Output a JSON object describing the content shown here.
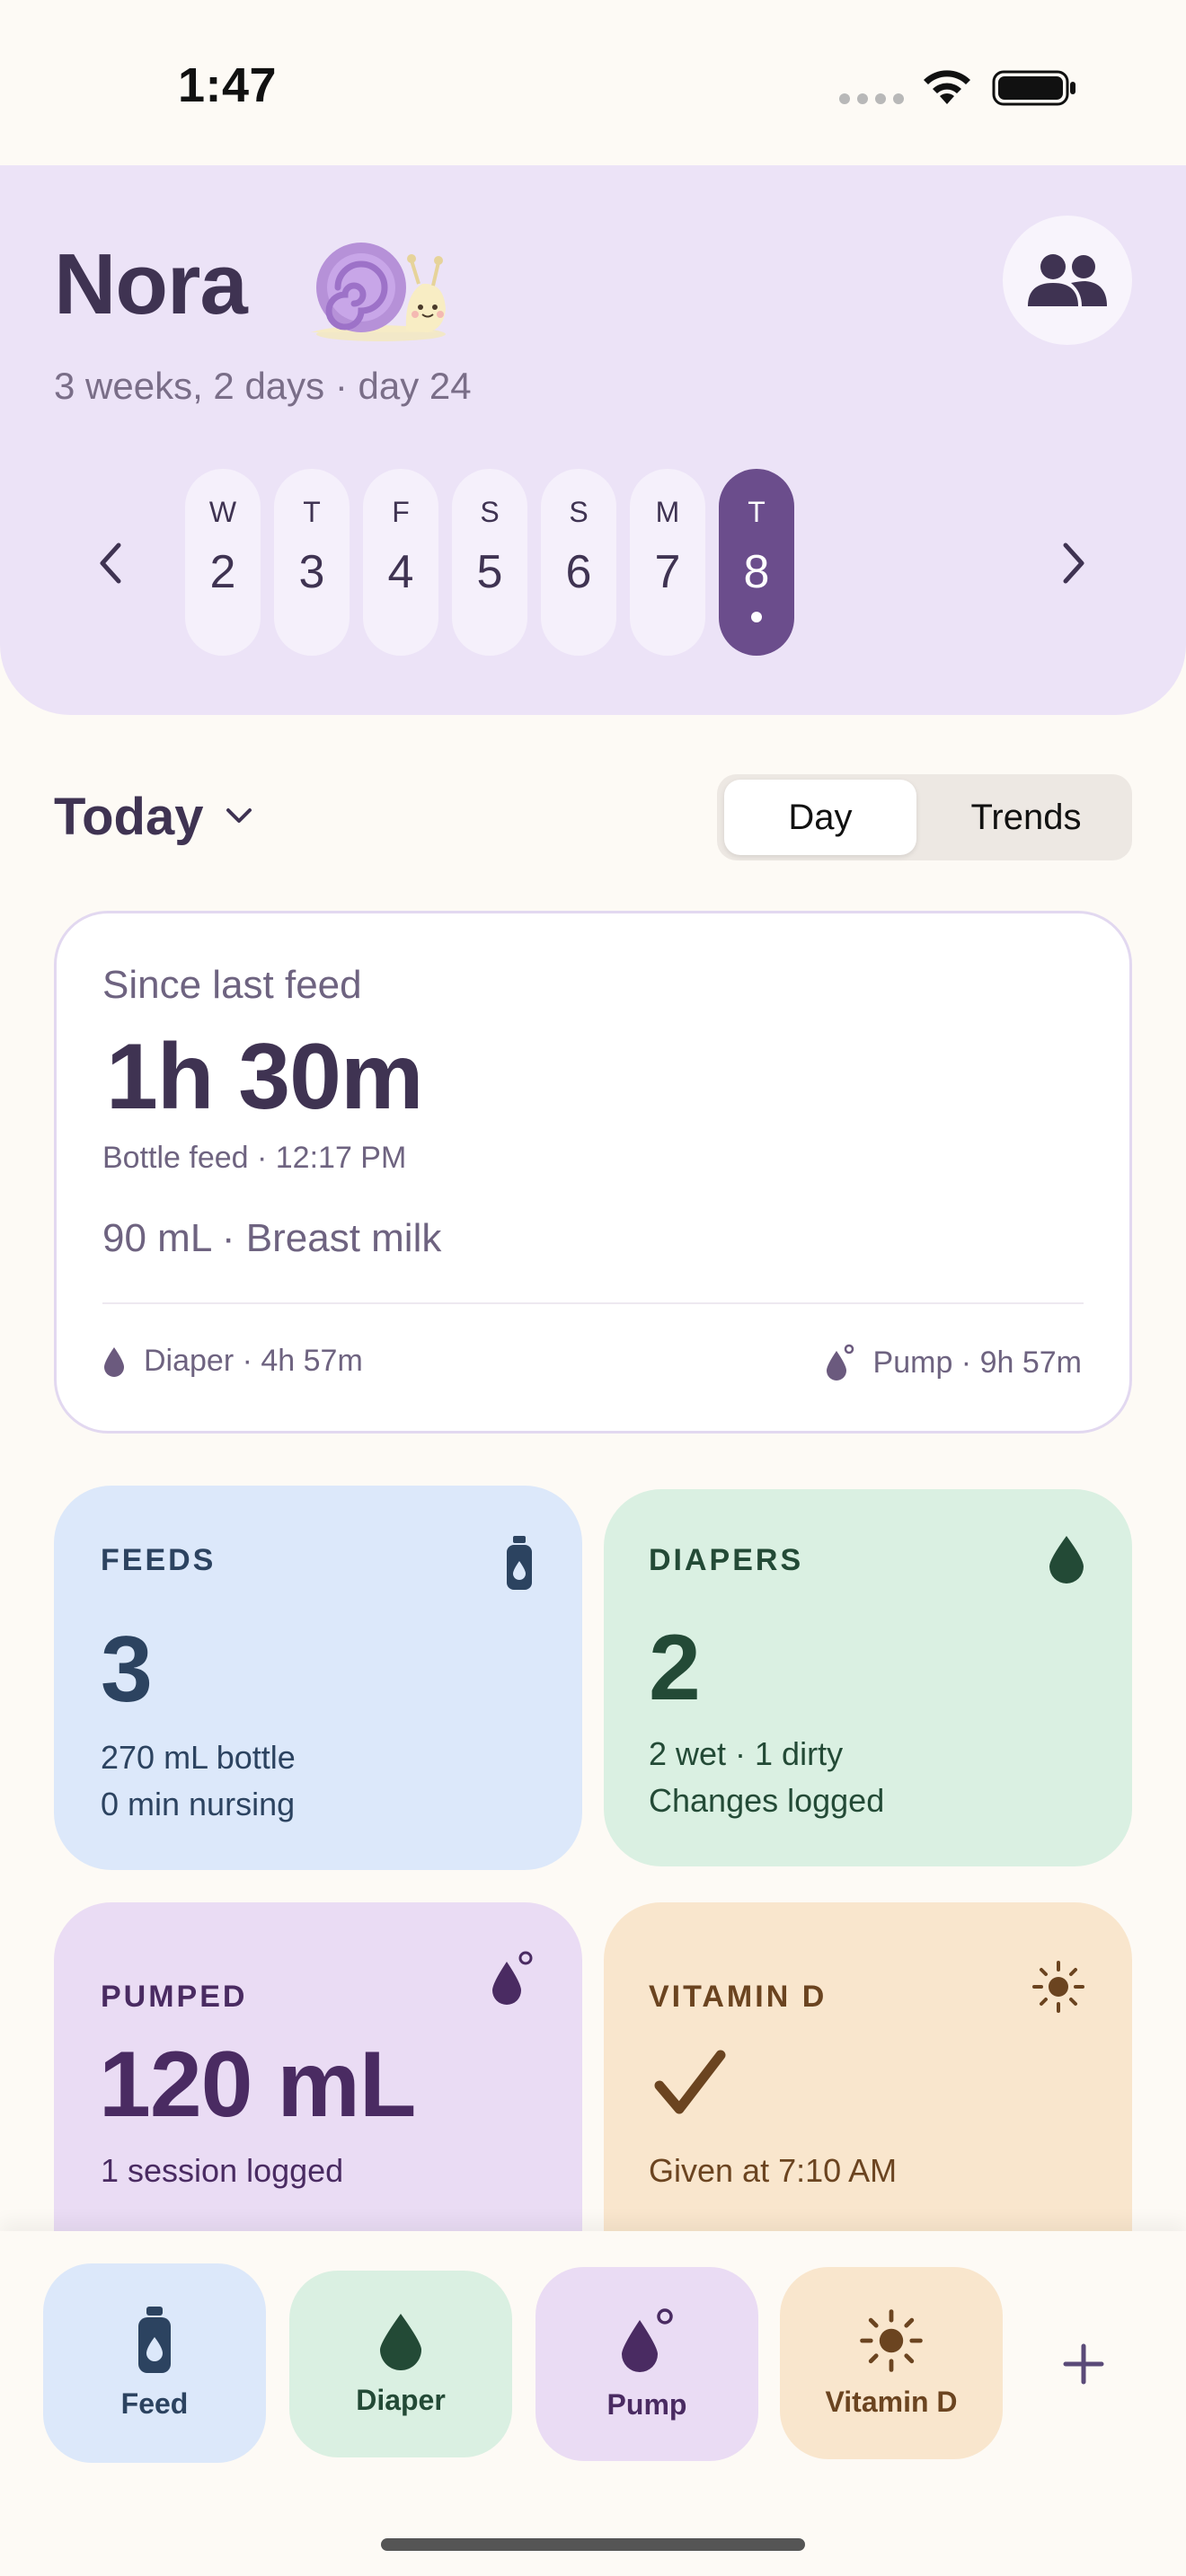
{
  "status_bar": {
    "time": "1:47"
  },
  "header": {
    "baby_name": "Nora",
    "age": "3 weeks, 2 days · day 24",
    "days": [
      {
        "dow": "W",
        "num": "2",
        "selected": false
      },
      {
        "dow": "T",
        "num": "3",
        "selected": false
      },
      {
        "dow": "F",
        "num": "4",
        "selected": false
      },
      {
        "dow": "S",
        "num": "5",
        "selected": false
      },
      {
        "dow": "S",
        "num": "6",
        "selected": false
      },
      {
        "dow": "M",
        "num": "7",
        "selected": false
      },
      {
        "dow": "T",
        "num": "8",
        "selected": true
      }
    ]
  },
  "controls": {
    "today_label": "Today",
    "segment_day": "Day",
    "segment_trends": "Trends",
    "selected_segment": "Day"
  },
  "last_feed": {
    "label": "Since last feed",
    "elapsed": "1h 30m",
    "detail": "Bottle feed · 12:17 PM",
    "amount": "90 mL · Breast milk",
    "diaper": "Diaper · 4h 57m",
    "pump": "Pump · 9h 57m"
  },
  "stats": {
    "feeds": {
      "title": "FEEDS",
      "value": "3",
      "line1": "270 mL bottle",
      "line2": "0 min nursing",
      "icon": "bottle-icon"
    },
    "diapers": {
      "title": "DIAPERS",
      "value": "2",
      "line1": "2 wet · 1 dirty",
      "line2": "Changes logged",
      "icon": "drop-icon"
    },
    "pumped": {
      "title": "PUMPED",
      "value": "120 mL",
      "line1": "1 session logged",
      "icon": "pump-drop-icon"
    },
    "vitamin_d": {
      "title": "VITAMIN D",
      "value_icon": "checkmark-icon",
      "line1": "Given at 7:10 AM",
      "icon": "sun-icon"
    }
  },
  "dock": {
    "feed": "Feed",
    "diaper": "Diaper",
    "pump": "Pump",
    "vitamin_d": "Vitamin D"
  },
  "colors": {
    "header_bg": "#ECE3F7",
    "selected_day": "#6B4D8C",
    "feeds_bg": "#DCE8FA",
    "diapers_bg": "#DAF0E2",
    "pumped_bg": "#EADCF4",
    "vitamin_bg": "#F9E6CD"
  }
}
